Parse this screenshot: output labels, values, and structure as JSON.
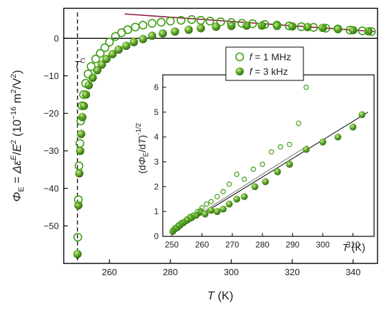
{
  "colors": {
    "series_1mhz": "#3d9b13",
    "series_3khz": "#5ea52a",
    "fit_line_main": "#8b1a3a",
    "fit_line_inset_1mhz": "#8a8a8a",
    "fit_line_inset_3khz": "#222222",
    "axes": "#000000"
  },
  "chart_data": [
    {
      "type": "scatter",
      "xlabel_symbol": "T",
      "xlabel_unit": "(K)",
      "ylabel": "Φ_E = Δε^E/E^2 (10^-16 m^2/V^2)",
      "ylabel_parts": {
        "lhs": "Φ",
        "lhs_sub": "E",
        "eq": " = ",
        "delta": "Δε",
        "delta_sup": "E",
        "slash": "/",
        "e": "E",
        "e_sup": "2",
        "unit_open": "  (10",
        "unit_exp": "−16",
        "unit_mid": " m",
        "unit_sq": "2",
        "unit_slash": "/V",
        "unit_sq2": "2",
        "unit_close": ")"
      },
      "xlim": [
        245,
        348
      ],
      "ylim": [
        -60,
        8
      ],
      "xticks": [
        260,
        280,
        300,
        320,
        340
      ],
      "yticks": [
        0,
        -10,
        -20,
        -30,
        -40,
        -50
      ],
      "xtick_labels": [
        "260",
        "280",
        "300",
        "320",
        "340"
      ],
      "ytick_labels": [
        "0",
        "−10",
        "−20",
        "−30",
        "−40",
        "−50"
      ],
      "transition_label": "T",
      "transition_sup": "C",
      "transition_x": 249.5,
      "legend_placement": "upper-right",
      "series": [
        {
          "name": "f = 1 MHz",
          "marker": "open-circle",
          "x": [
            249.6,
            249.8,
            250.0,
            250.3,
            250.6,
            251.0,
            251.5,
            252.2,
            253.0,
            254.0,
            255.5,
            257.0,
            258.5,
            260.0,
            262.0,
            264.0,
            266.0,
            268.5,
            271.0,
            274.0,
            277.0,
            280.0,
            283.5,
            287.0,
            290.0,
            293.0,
            296.5,
            300.0,
            303.5,
            307.0,
            311.0,
            315.0,
            319.0,
            323.0,
            327.0,
            331.0,
            335.0,
            339.0,
            343.0,
            346.0
          ],
          "y": [
            -53,
            -43,
            -34,
            -28,
            -22,
            -18,
            -15,
            -12,
            -9.5,
            -7.5,
            -5.5,
            -4,
            -2.5,
            -1,
            0.5,
            1.5,
            2.3,
            3,
            3.5,
            4,
            4.3,
            4.6,
            4.8,
            5,
            4.8,
            4.6,
            4.4,
            4.2,
            4,
            3.9,
            3.7,
            3.5,
            3.3,
            3.1,
            2.9,
            2.7,
            2.5,
            2.2,
            2,
            1.8
          ]
        },
        {
          "name": "f = 3 kHz",
          "marker": "filled-ball",
          "x": [
            249.5,
            249.8,
            250.1,
            250.4,
            250.7,
            251.1,
            251.6,
            252.3,
            253.2,
            254.5,
            256.0,
            257.5,
            259.0,
            261.0,
            263.0,
            265.5,
            268.0,
            271.0,
            274.0,
            277.5,
            281.5,
            286.0,
            290.0,
            295.0,
            300.0,
            305.0,
            310.0,
            315.0,
            320.0,
            325.0,
            330.0,
            335.0,
            340.0,
            345.0
          ],
          "y": [
            -57.5,
            -44.5,
            -36,
            -30,
            -25.5,
            -21,
            -18,
            -15,
            -12.5,
            -10.5,
            -8.5,
            -7,
            -5.5,
            -4.2,
            -3,
            -2,
            -1,
            -0.2,
            0.7,
            1.3,
            1.8,
            2.3,
            2.7,
            3.1,
            3.3,
            3.4,
            3.4,
            3.3,
            3.2,
            3,
            2.8,
            2.5,
            2.2,
            1.9
          ]
        }
      ],
      "fit_line": {
        "x": [
          265,
          347
        ],
        "y": [
          6.5,
          1.8
        ]
      }
    },
    {
      "type": "scatter",
      "inset": true,
      "xlabel_symbol": "T",
      "xlabel_unit": "(K)",
      "ylabel": "(dΦ_E/dT)^-1/2",
      "ylabel_parts": {
        "open": "(d",
        "phi": "Φ",
        "sub": "E",
        "mid": "/d",
        "t": "T",
        "close": ")",
        "sup": "-1/2"
      },
      "xlim": [
        247,
        317
      ],
      "ylim": [
        0,
        6.5
      ],
      "xticks": [
        250,
        260,
        270,
        280,
        290,
        300,
        310
      ],
      "yticks": [
        0,
        1,
        2,
        3,
        4,
        5,
        6
      ],
      "xtick_labels": [
        "250",
        "260",
        "270",
        "280",
        "290",
        "300",
        "310"
      ],
      "ytick_labels": [
        "0",
        "1",
        "2",
        "3",
        "4",
        "5",
        "6"
      ],
      "series": [
        {
          "name": "f = 1 MHz",
          "marker": "open-circle",
          "x": [
            250.5,
            251.2,
            252.0,
            253.0,
            254.0,
            255.0,
            256.0,
            257.0,
            258.5,
            260.0,
            261.5,
            263.0,
            265.0,
            267.0,
            269.0,
            271.5,
            274.0,
            277.0,
            280.0,
            283.0,
            286.0,
            289.0,
            292.0,
            294.5
          ],
          "y": [
            0.25,
            0.35,
            0.45,
            0.55,
            0.6,
            0.7,
            0.8,
            0.85,
            1.0,
            1.15,
            1.3,
            1.4,
            1.6,
            1.8,
            2.1,
            2.5,
            2.3,
            2.7,
            2.9,
            3.4,
            3.6,
            3.7,
            4.55,
            6.0
          ]
        },
        {
          "name": "f = 3 kHz",
          "marker": "filled-ball",
          "x": [
            250.3,
            251.0,
            251.8,
            252.7,
            253.8,
            255.0,
            256.5,
            258.0,
            259.5,
            261.0,
            263.0,
            265.0,
            267.0,
            269.0,
            271.5,
            274.0,
            277.5,
            281.0,
            285.0,
            289.0,
            294.5,
            300.0,
            305.0,
            310.0,
            313.0
          ],
          "y": [
            0.2,
            0.3,
            0.35,
            0.45,
            0.55,
            0.65,
            0.75,
            0.85,
            1.0,
            0.9,
            1.05,
            1.0,
            1.1,
            1.3,
            1.5,
            1.6,
            2.0,
            2.2,
            2.6,
            2.9,
            3.5,
            3.8,
            4.0,
            4.4,
            4.9
          ]
        }
      ],
      "fit_lines": [
        {
          "series": "f = 1 MHz",
          "x": [
            250,
            295
          ],
          "y": [
            0.2,
            3.65
          ]
        },
        {
          "series": "f = 3 kHz",
          "x": [
            250,
            315
          ],
          "y": [
            0.15,
            5.0
          ]
        }
      ]
    }
  ],
  "legend": {
    "items": [
      {
        "f": "f",
        "rest": " = 1 MHz",
        "marker": "open-circle"
      },
      {
        "f": "f",
        "rest": " = 3 kHz",
        "marker": "filled-ball"
      }
    ]
  }
}
